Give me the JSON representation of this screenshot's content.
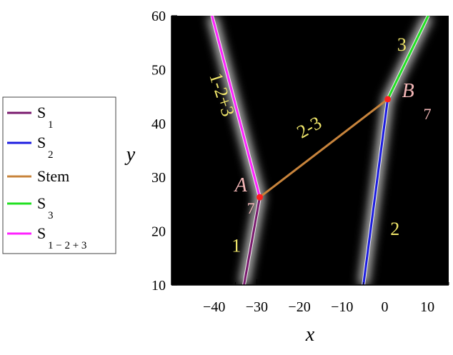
{
  "chart_data": {
    "type": "line",
    "xlabel": "x",
    "ylabel": "y",
    "xlim": [
      -50,
      15
    ],
    "ylim": [
      10,
      60
    ],
    "x_ticks": [
      -40,
      -30,
      -20,
      -10,
      0,
      10
    ],
    "x_tick_labels": [
      "−40",
      "−30",
      "−20",
      "−10",
      "0",
      "10"
    ],
    "y_ticks": [
      10,
      20,
      30,
      40,
      50,
      60
    ],
    "y_tick_labels": [
      "10",
      "20",
      "30",
      "40",
      "50",
      "60"
    ],
    "background": "#000000",
    "grid": false,
    "legend_position": "left",
    "series": [
      {
        "name": "S",
        "sub": "1",
        "color": "#7a1a6e",
        "x": [
          -33.0,
          -29.3
        ],
        "y": [
          10,
          26.3
        ]
      },
      {
        "name": "S",
        "sub": "2",
        "color": "#1c1ce0",
        "x": [
          -5.0,
          0.7
        ],
        "y": [
          10,
          44.5
        ]
      },
      {
        "name": "Stem",
        "sub": "",
        "color": "#c8843c",
        "x": [
          -29.3,
          0.7
        ],
        "y": [
          26.3,
          44.5
        ]
      },
      {
        "name": "S",
        "sub": "3",
        "color": "#22e022",
        "x": [
          0.7,
          10.2
        ],
        "y": [
          44.5,
          60
        ]
      },
      {
        "name": "S",
        "sub": "1 − 2 + 3",
        "color": "#ff22ff",
        "x": [
          -29.3,
          -40.5
        ],
        "y": [
          26.3,
          60
        ]
      }
    ],
    "glow_curves": [
      {
        "x": [
          -33.0,
          -29.3,
          -40.5
        ],
        "y": [
          10,
          26.3,
          60
        ]
      },
      {
        "x": [
          -5.0,
          0.7,
          10.2
        ],
        "y": [
          10,
          44.5,
          60
        ]
      }
    ],
    "points": [
      {
        "label": "A",
        "num": "7",
        "x": -29.3,
        "y": 26.3,
        "color": "#ff2020"
      },
      {
        "label": "B",
        "num": "7",
        "x": 0.7,
        "y": 44.5,
        "color": "#ff2020"
      }
    ],
    "annotations": [
      {
        "text": "1-2+3",
        "x": -39.5,
        "y": 45,
        "rotate": 72
      },
      {
        "text": "2-3",
        "x": -17.0,
        "y": 38.3,
        "rotate": -30
      },
      {
        "text": "3",
        "x": 4.0,
        "y": 53.5,
        "rotate": 0
      },
      {
        "text": "1",
        "x": -34.8,
        "y": 16.2,
        "rotate": 0
      },
      {
        "text": "2",
        "x": 2.4,
        "y": 19.3,
        "rotate": 0
      }
    ]
  },
  "legend": {
    "items": [
      {
        "name": "S",
        "sub": "1",
        "color": "#7a1a6e"
      },
      {
        "name": "S",
        "sub": "2",
        "color": "#1c1ce0"
      },
      {
        "name": "Stem",
        "sub": "",
        "color": "#c8843c"
      },
      {
        "name": "S",
        "sub": "3",
        "color": "#22e022"
      },
      {
        "name": "S",
        "sub": "1 − 2 + 3",
        "color": "#ff22ff"
      }
    ]
  }
}
